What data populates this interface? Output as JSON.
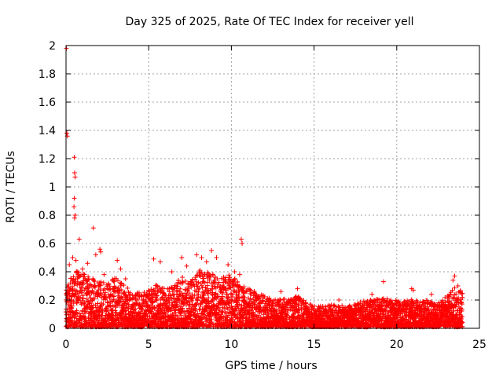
{
  "chart_data": {
    "type": "scatter",
    "title": "Day 325 of 2025, Rate Of TEC Index for receiver yell",
    "xlabel": "GPS time / hours",
    "ylabel": "ROTI / TECUs",
    "xlim": [
      0,
      25
    ],
    "ylim": [
      0,
      2
    ],
    "xticks": [
      "0",
      "5",
      "10",
      "15",
      "20",
      "25"
    ],
    "yticks": [
      "0",
      "0.2",
      "0.4",
      "0.6",
      "0.8",
      "1",
      "1.2",
      "1.4",
      "1.6",
      "1.8",
      "2"
    ],
    "xtick_values": [
      0,
      5,
      10,
      15,
      20,
      25
    ],
    "ytick_values": [
      0,
      0.2,
      0.4,
      0.6,
      0.8,
      1.0,
      1.2,
      1.4,
      1.6,
      1.8,
      2.0
    ],
    "grid": true,
    "marker": "+",
    "color": "#ff0000",
    "series": [
      {
        "name": "ROTI",
        "points": [
          [
            0.02,
            1.98
          ],
          [
            0.05,
            1.38
          ],
          [
            0.08,
            1.36
          ],
          [
            0.5,
            1.21
          ],
          [
            0.52,
            1.1
          ],
          [
            0.55,
            1.07
          ],
          [
            0.5,
            0.92
          ],
          [
            0.48,
            0.86
          ],
          [
            0.55,
            0.8
          ],
          [
            0.52,
            0.78
          ],
          [
            0.8,
            0.63
          ],
          [
            1.65,
            0.71
          ],
          [
            2.05,
            0.56
          ],
          [
            2.1,
            0.54
          ],
          [
            10.6,
            0.63
          ],
          [
            10.65,
            0.6
          ],
          [
            19.2,
            0.33
          ],
          [
            20.9,
            0.28
          ],
          [
            21.0,
            0.27
          ],
          [
            23.5,
            0.37
          ],
          [
            23.4,
            0.34
          ],
          [
            0.2,
            0.45
          ],
          [
            0.4,
            0.5
          ],
          [
            0.6,
            0.48
          ],
          [
            1.0,
            0.42
          ],
          [
            1.3,
            0.46
          ],
          [
            1.8,
            0.52
          ],
          [
            2.3,
            0.38
          ],
          [
            3.1,
            0.48
          ],
          [
            3.3,
            0.42
          ],
          [
            3.6,
            0.35
          ],
          [
            5.3,
            0.49
          ],
          [
            5.7,
            0.47
          ],
          [
            6.4,
            0.4
          ],
          [
            7.0,
            0.5
          ],
          [
            7.3,
            0.44
          ],
          [
            7.9,
            0.52
          ],
          [
            8.2,
            0.5
          ],
          [
            8.5,
            0.47
          ],
          [
            8.8,
            0.55
          ],
          [
            9.1,
            0.5
          ],
          [
            9.8,
            0.45
          ],
          [
            10.2,
            0.4
          ],
          [
            10.5,
            0.38
          ],
          [
            13.0,
            0.26
          ],
          [
            14.0,
            0.28
          ],
          [
            16.5,
            0.2
          ],
          [
            18.5,
            0.24
          ],
          [
            22.1,
            0.24
          ],
          [
            23.7,
            0.3
          ]
        ]
      }
    ],
    "envelope": [
      [
        0,
        0.3
      ],
      [
        0.5,
        0.42
      ],
      [
        1,
        0.38
      ],
      [
        1.5,
        0.35
      ],
      [
        2,
        0.33
      ],
      [
        2.5,
        0.3
      ],
      [
        3,
        0.36
      ],
      [
        3.5,
        0.3
      ],
      [
        4,
        0.26
      ],
      [
        4.5,
        0.24
      ],
      [
        5,
        0.27
      ],
      [
        5.5,
        0.3
      ],
      [
        6,
        0.27
      ],
      [
        6.5,
        0.3
      ],
      [
        7,
        0.36
      ],
      [
        7.5,
        0.33
      ],
      [
        8,
        0.4
      ],
      [
        8.5,
        0.42
      ],
      [
        9,
        0.36
      ],
      [
        9.5,
        0.35
      ],
      [
        10,
        0.38
      ],
      [
        10.5,
        0.3
      ],
      [
        11,
        0.27
      ],
      [
        11.5,
        0.25
      ],
      [
        12,
        0.22
      ],
      [
        12.5,
        0.19
      ],
      [
        13,
        0.2
      ],
      [
        13.5,
        0.2
      ],
      [
        14,
        0.22
      ],
      [
        14.5,
        0.18
      ],
      [
        15,
        0.15
      ],
      [
        15.5,
        0.15
      ],
      [
        16,
        0.16
      ],
      [
        16.5,
        0.15
      ],
      [
        17,
        0.15
      ],
      [
        17.5,
        0.16
      ],
      [
        18,
        0.19
      ],
      [
        18.5,
        0.19
      ],
      [
        19,
        0.2
      ],
      [
        19.5,
        0.2
      ],
      [
        20,
        0.19
      ],
      [
        20.5,
        0.18
      ],
      [
        21,
        0.2
      ],
      [
        21.5,
        0.18
      ],
      [
        22,
        0.2
      ],
      [
        22.5,
        0.18
      ],
      [
        23,
        0.22
      ],
      [
        23.5,
        0.28
      ],
      [
        24,
        0.25
      ]
    ]
  }
}
